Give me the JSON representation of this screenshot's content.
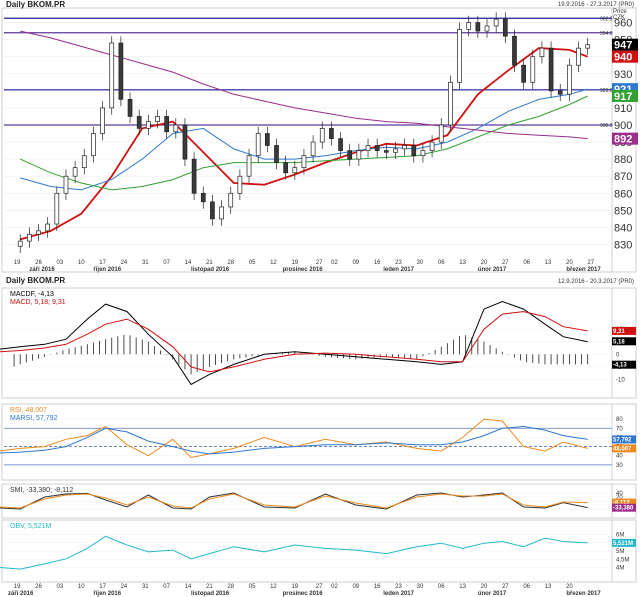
{
  "header": {
    "price_title": "Daily BKOM.PR",
    "price_range": "19.9.2016 - 27.3.2017 (PR0)",
    "ind_title": "Daily BKOM.PR",
    "ind_range": "12.9.2016 - 20.3.2017 (PR0)",
    "price_unit_1": "Price",
    "price_unit_2": "CZK"
  },
  "x_axis": {
    "day_ticks": [
      "19",
      "26",
      "03",
      "10",
      "17",
      "24",
      "31",
      "07",
      "14",
      "21",
      "28",
      "05",
      "12",
      "19",
      "27",
      "02",
      "09",
      "16",
      "23",
      "30",
      "06",
      "13",
      "20",
      "27",
      "06",
      "13",
      "20",
      "27"
    ],
    "bottom_day_ticks": [
      "12",
      "19",
      "26",
      "03",
      "10",
      "17",
      "24",
      "31",
      "07",
      "14",
      "21",
      "28",
      "05",
      "12",
      "19",
      "27",
      "02",
      "09",
      "16",
      "23",
      "30",
      "06",
      "13",
      "20",
      "27",
      "06",
      "13",
      "20"
    ],
    "months": [
      {
        "label": "září 2016",
        "day": 3
      },
      {
        "label": "říjen 2016",
        "day": 24
      },
      {
        "label": "listopad 2016",
        "day": 56
      },
      {
        "label": "prosinec 2016",
        "day": 86
      },
      {
        "label": "leden 2017",
        "day": 119
      },
      {
        "label": "únor 2017",
        "day": 150
      },
      {
        "label": "březen 2017",
        "day": 179
      }
    ],
    "bottom_months": [
      {
        "label": "září 2016",
        "day": -4
      },
      {
        "label": "říjen 2016",
        "day": 24
      },
      {
        "label": "listopad 2016",
        "day": 56
      },
      {
        "label": "prosinec 2016",
        "day": 86
      },
      {
        "label": "leden 2017",
        "day": 119
      },
      {
        "label": "únor 2017",
        "day": 150
      },
      {
        "label": "březen 2017",
        "day": 179
      }
    ]
  },
  "chart_data": [
    {
      "type": "candlestick",
      "title": "Daily BKOM.PR",
      "ylim": [
        818,
        965
      ],
      "y_ticks": [
        830,
        840,
        850,
        860,
        870,
        880,
        890,
        900,
        910,
        920,
        930,
        940,
        950,
        960
      ],
      "hlines": [
        {
          "value": 920.6,
          "label": "920.6",
          "color": "#20209a"
        },
        {
          "value": 900.0,
          "label": "900.0",
          "color": "#5a3a9a"
        },
        {
          "value": 954.0,
          "label": "954.0",
          "color": "#5a3a9a"
        },
        {
          "value": 962.5,
          "label": "962.5",
          "color": "#20209a"
        }
      ],
      "last_values": [
        {
          "label": "947",
          "color": "#000000",
          "value": 947
        },
        {
          "label": "940",
          "color": "#d01010",
          "value": 940
        },
        {
          "label": "921",
          "color": "#2f78d0",
          "value": 921
        },
        {
          "label": "917",
          "color": "#33a033",
          "value": 917
        },
        {
          "label": "892",
          "color": "#9b2d8d",
          "value": 892
        }
      ],
      "candle_dates": [
        0,
        3,
        6,
        9,
        12,
        15,
        18,
        21,
        24,
        27,
        30,
        33,
        36,
        39,
        42,
        45,
        48,
        51,
        54,
        57,
        60,
        63,
        66,
        69,
        72,
        75,
        78,
        81,
        84,
        87,
        90,
        93,
        96,
        99,
        102,
        105,
        108,
        111,
        114,
        117,
        120,
        123,
        126,
        129,
        132,
        135,
        138,
        141,
        144,
        147,
        150,
        153,
        156,
        159,
        162,
        165,
        168,
        171,
        174,
        177,
        180,
        183,
        186
      ],
      "closes": [
        832,
        836,
        838,
        842,
        860,
        870,
        875,
        882,
        895,
        910,
        948,
        915,
        905,
        898,
        902,
        905,
        896,
        900,
        880,
        860,
        855,
        845,
        852,
        860,
        870,
        882,
        895,
        888,
        878,
        872,
        875,
        882,
        890,
        898,
        892,
        885,
        880,
        885,
        888,
        885,
        884,
        886,
        888,
        882,
        885,
        890,
        900,
        925,
        956,
        960,
        955,
        958,
        962,
        952,
        935,
        925,
        940,
        945,
        920,
        918,
        935,
        945,
        947
      ],
      "series": [
        {
          "name": "",
          "color": "#d01010",
          "x": [
            0,
            10,
            20,
            30,
            40,
            50,
            60,
            70,
            80,
            90,
            100,
            110,
            120,
            130,
            140,
            150,
            160,
            170,
            180,
            186
          ],
          "y": [
            833,
            838,
            848,
            870,
            898,
            902,
            884,
            866,
            865,
            871,
            878,
            884,
            889,
            888,
            894,
            918,
            932,
            945,
            944,
            940
          ]
        },
        {
          "name": "",
          "color": "#2f78d0",
          "x": [
            0,
            10,
            20,
            30,
            40,
            50,
            60,
            70,
            80,
            90,
            100,
            110,
            120,
            130,
            140,
            150,
            160,
            170,
            180,
            186
          ],
          "y": [
            869,
            864,
            862,
            868,
            880,
            895,
            898,
            886,
            880,
            880,
            882,
            885,
            887,
            886,
            890,
            898,
            908,
            915,
            918,
            921
          ]
        },
        {
          "name": "",
          "color": "#33a033",
          "x": [
            0,
            10,
            20,
            30,
            40,
            50,
            60,
            70,
            80,
            90,
            100,
            110,
            120,
            130,
            140,
            150,
            160,
            170,
            180,
            186
          ],
          "y": [
            880,
            872,
            866,
            862,
            864,
            868,
            875,
            878,
            878,
            878,
            879,
            880,
            881,
            882,
            886,
            893,
            900,
            905,
            912,
            917
          ]
        },
        {
          "name": "",
          "color": "#9b2d8d",
          "x": [
            0,
            10,
            20,
            30,
            40,
            50,
            60,
            70,
            80,
            90,
            100,
            110,
            120,
            130,
            140,
            150,
            160,
            170,
            180,
            186
          ],
          "y": [
            955,
            951,
            946,
            941,
            936,
            931,
            924,
            918,
            914,
            910,
            907,
            904,
            902,
            901,
            899,
            897,
            895,
            894,
            893,
            892
          ]
        }
      ]
    },
    {
      "type": "line",
      "title": "MACD",
      "legend": [
        "MACDF, -4,13",
        "MACD, 5,18; 9,31"
      ],
      "y_ticks": [
        -10,
        -5,
        0,
        5,
        10
      ],
      "ylim": [
        -15,
        24
      ],
      "last_values": [
        {
          "label": "9,31",
          "color": "#d01010",
          "value": 9.31
        },
        {
          "label": "5,18",
          "color": "#000000",
          "value": 5.18
        },
        {
          "label": "-4,13",
          "color": "#000000",
          "value": -4.13
        }
      ],
      "x": [
        -7,
        0,
        8,
        15,
        22,
        28,
        35,
        42,
        50,
        56,
        62,
        70,
        80,
        90,
        100,
        110,
        120,
        130,
        138,
        145,
        152,
        158,
        165,
        172,
        178,
        186
      ],
      "series": [
        {
          "name": "MACD",
          "color": "#000000",
          "y": [
            2,
            3,
            4,
            6,
            14,
            20,
            17,
            8,
            -1,
            -12,
            -8,
            -4,
            0,
            1,
            0,
            -1,
            -2,
            -3,
            -4,
            -3,
            18,
            21,
            18,
            12,
            7,
            5
          ]
        },
        {
          "name": "Signal",
          "color": "#d01010",
          "y": [
            1,
            1.5,
            2.5,
            4,
            8,
            12,
            14,
            10,
            3,
            -5,
            -7,
            -5,
            -2,
            0,
            0.5,
            0,
            -1,
            -2,
            -3,
            -3,
            10,
            16,
            17,
            15,
            11,
            9.3
          ]
        }
      ],
      "hist": [
        -7,
        -4,
        -1,
        2,
        4,
        6,
        8,
        5,
        -2,
        -8,
        -5,
        -2,
        0,
        1,
        -1,
        -2,
        -1,
        -2,
        3,
        8,
        5,
        1,
        -3,
        -4,
        -4,
        -4
      ]
    },
    {
      "type": "line",
      "title": "RSI",
      "legend": [
        "RSI, 48,007",
        "MARSI, 57,792"
      ],
      "y_ticks": [
        30,
        40,
        50,
        60,
        70,
        80
      ],
      "ylim": [
        20,
        90
      ],
      "hlines": [
        70,
        50,
        30
      ],
      "last_values": [
        {
          "label": "57,792",
          "color": "#2f78d0",
          "value": 57.792
        },
        {
          "label": "48,007",
          "color": "#ee8a20",
          "value": 48.007
        }
      ],
      "x": [
        -7,
        0,
        8,
        15,
        22,
        28,
        35,
        42,
        50,
        56,
        62,
        70,
        80,
        90,
        100,
        110,
        120,
        130,
        138,
        145,
        152,
        158,
        165,
        172,
        178,
        186
      ],
      "series": [
        {
          "name": "RSI",
          "color": "#ee8a20",
          "y": [
            45,
            48,
            50,
            58,
            62,
            72,
            52,
            40,
            58,
            38,
            42,
            48,
            60,
            50,
            58,
            52,
            55,
            48,
            45,
            60,
            80,
            78,
            50,
            45,
            55,
            48
          ]
        },
        {
          "name": "MARSI",
          "color": "#2f78d0",
          "y": [
            43,
            44,
            46,
            50,
            60,
            70,
            66,
            56,
            50,
            45,
            42,
            44,
            48,
            50,
            52,
            52,
            54,
            52,
            52,
            55,
            62,
            70,
            72,
            68,
            62,
            57.8
          ]
        }
      ]
    },
    {
      "type": "line",
      "title": "SMI",
      "legend": [
        "SMI, -33,380; -8,112"
      ],
      "y_ticks": [
        -40,
        -20,
        0,
        20,
        40
      ],
      "ylim": [
        -55,
        55
      ],
      "last_values": [
        {
          "label": "-8,112",
          "color": "#ee8a20",
          "value": -8.112
        },
        {
          "label": "-33,380",
          "color": "#9b2d8d",
          "value": -33.38
        }
      ],
      "x": [
        -7,
        0,
        8,
        15,
        22,
        28,
        35,
        42,
        50,
        56,
        62,
        70,
        80,
        90,
        100,
        110,
        120,
        130,
        138,
        145,
        152,
        158,
        165,
        172,
        178,
        186
      ],
      "series": [
        {
          "name": "SMI",
          "color": "#333333",
          "y": [
            -35,
            -40,
            20,
            35,
            38,
            5,
            -30,
            30,
            -35,
            -40,
            20,
            40,
            -30,
            -35,
            35,
            -20,
            -40,
            30,
            40,
            20,
            30,
            40,
            -30,
            -35,
            -8,
            -33
          ]
        },
        {
          "name": "Signal",
          "color": "#ee8a20",
          "y": [
            -30,
            -35,
            10,
            30,
            35,
            15,
            -20,
            20,
            -25,
            -35,
            10,
            35,
            -20,
            -30,
            25,
            -10,
            -35,
            20,
            35,
            25,
            25,
            35,
            -20,
            -30,
            -5,
            -8
          ]
        }
      ]
    },
    {
      "type": "line",
      "title": "OBV",
      "legend": [
        "OBV, 5,521M"
      ],
      "y_ticks": [
        "4M",
        "4,5M",
        "5M",
        "5,5M",
        "6M"
      ],
      "ylim": [
        3.6,
        6.5
      ],
      "last_values": [
        {
          "label": "5,521M",
          "color": "#22b8c8",
          "value": 5.521
        }
      ],
      "x": [
        -7,
        0,
        8,
        15,
        22,
        28,
        35,
        42,
        50,
        56,
        62,
        70,
        80,
        90,
        100,
        110,
        120,
        130,
        138,
        145,
        152,
        158,
        165,
        172,
        178,
        186
      ],
      "series": [
        {
          "name": "OBV",
          "color": "#22b8c8",
          "y": [
            4.1,
            4.0,
            4.3,
            4.6,
            5.2,
            5.9,
            5.4,
            5.0,
            5.1,
            4.6,
            4.9,
            5.3,
            5.0,
            5.4,
            5.2,
            5.1,
            4.9,
            5.3,
            5.5,
            5.2,
            5.5,
            5.6,
            5.3,
            5.8,
            5.6,
            5.52
          ]
        }
      ]
    }
  ]
}
